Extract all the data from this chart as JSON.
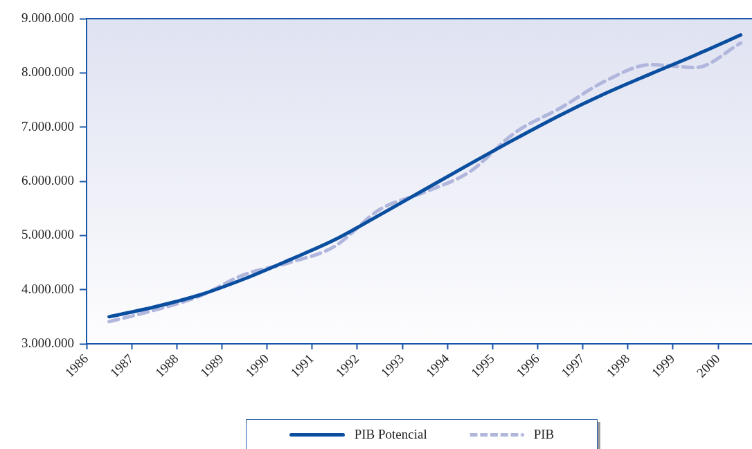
{
  "chart_data": {
    "type": "line",
    "x": [
      1986.5,
      1987.5,
      1988.5,
      1989.5,
      1990.5,
      1991.5,
      1992.5,
      1993.5,
      1994.5,
      1995.5,
      1996.5,
      1997.5,
      1998.5,
      1999.5,
      2000.5
    ],
    "series": [
      {
        "name": "PIB Potencial",
        "color": "#0a4ea0",
        "line_style": "solid",
        "values": [
          3500000,
          3680000,
          3900000,
          4200000,
          4550000,
          4920000,
          5380000,
          5850000,
          6320000,
          6780000,
          7220000,
          7620000,
          7980000,
          8330000,
          8700000
        ]
      },
      {
        "name": "PIB",
        "color": "#b0b6dc",
        "line_style": "dashed",
        "values": [
          3410000,
          3620000,
          3880000,
          4280000,
          4500000,
          4800000,
          5480000,
          5800000,
          6180000,
          6900000,
          7350000,
          7850000,
          8150000,
          8100000,
          8550000
        ]
      }
    ],
    "xlim": [
      1986,
      2000.75
    ],
    "xticks": [
      1986,
      1987,
      1988,
      1989,
      1990,
      1991,
      1992,
      1993,
      1994,
      1995,
      1996,
      1997,
      1998,
      1999,
      2000
    ],
    "ylim": [
      3000000,
      9000000
    ],
    "yticks": [
      {
        "value": 3000000,
        "label": "3.000.000"
      },
      {
        "value": 4000000,
        "label": "4.000.000"
      },
      {
        "value": 5000000,
        "label": "5.000.000"
      },
      {
        "value": 6000000,
        "label": "6.000.000"
      },
      {
        "value": 7000000,
        "label": "7.000.000"
      },
      {
        "value": 8000000,
        "label": "8.000.000"
      },
      {
        "value": 9000000,
        "label": "9.000.000"
      }
    ],
    "grid": false,
    "legend": "bottom",
    "marker": "none"
  }
}
